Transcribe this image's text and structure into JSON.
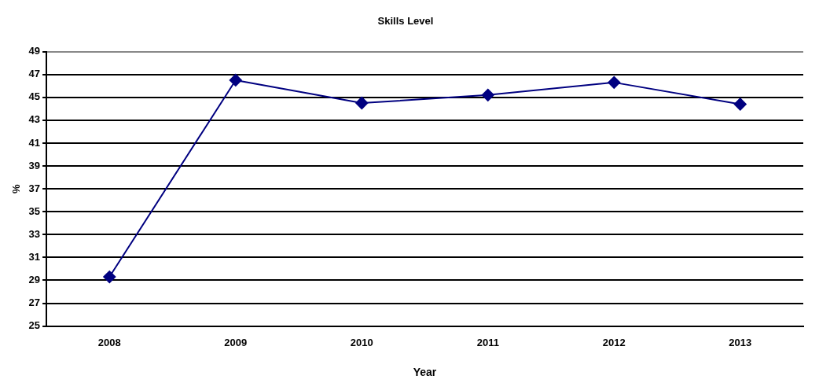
{
  "chart_data": {
    "type": "line",
    "title": "Skills Level",
    "xlabel": "Year",
    "ylabel": "%",
    "categories": [
      "2008",
      "2009",
      "2010",
      "2011",
      "2012",
      "2013"
    ],
    "series": [
      {
        "color": "#000080",
        "values": [
          29.3,
          46.5,
          44.5,
          45.2,
          46.3,
          44.4
        ]
      }
    ],
    "ylim": [
      25,
      49
    ],
    "yticks": [
      25,
      27,
      29,
      31,
      33,
      35,
      37,
      39,
      41,
      43,
      45,
      47,
      49
    ],
    "grid": "y",
    "legend": false,
    "marker": "diamond",
    "line_style": "solid"
  }
}
